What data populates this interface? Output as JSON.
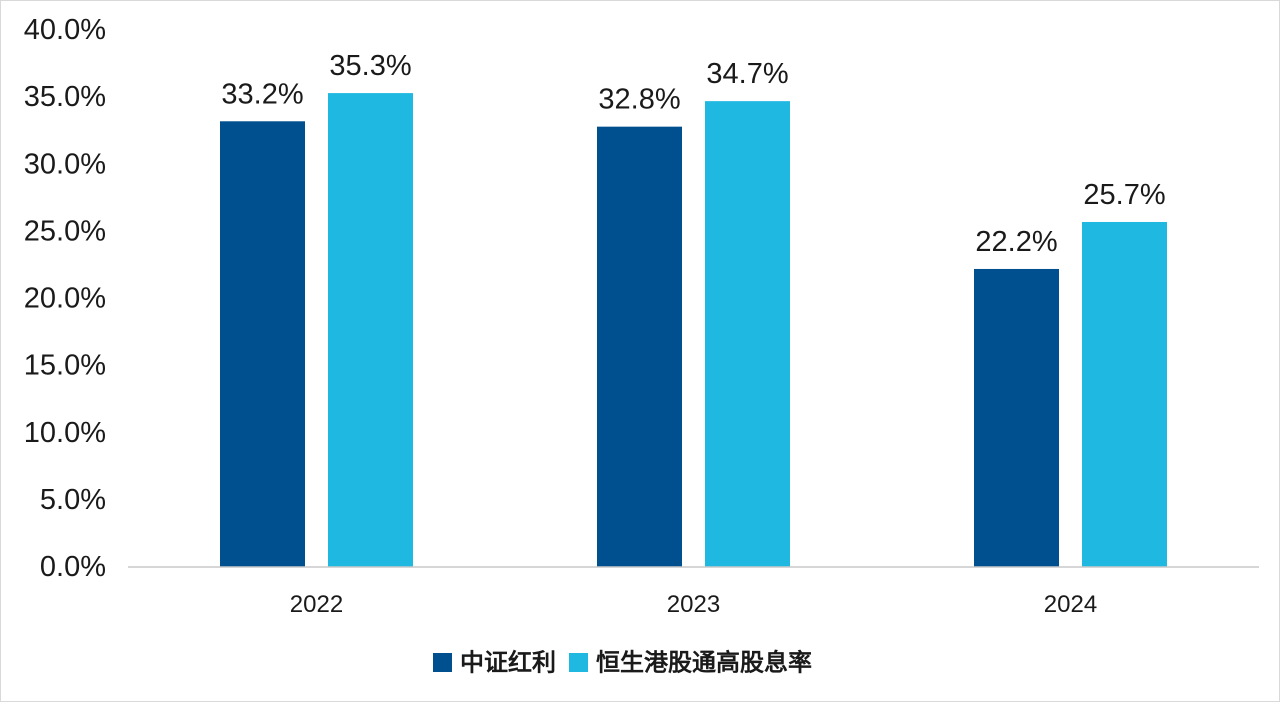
{
  "chart_data": {
    "type": "bar",
    "categories": [
      "2022",
      "2023",
      "2024"
    ],
    "series": [
      {
        "name": "中证红利",
        "values": [
          33.2,
          32.8,
          22.2
        ],
        "labels": [
          "33.2%",
          "32.8%",
          "22.2%"
        ],
        "color": "#00508f"
      },
      {
        "name": "恒生港股通高股息率",
        "values": [
          35.3,
          34.7,
          25.7
        ],
        "labels": [
          "35.3%",
          "34.7%",
          "25.7%"
        ],
        "color": "#1fb8e0"
      }
    ],
    "ylim": [
      0,
      40
    ],
    "yticks": [
      0,
      5,
      10,
      15,
      20,
      25,
      30,
      35,
      40
    ],
    "ytick_labels": [
      "0.0%",
      "5.0%",
      "10.0%",
      "15.0%",
      "20.0%",
      "25.0%",
      "30.0%",
      "35.0%",
      "40.0%"
    ],
    "grid": false,
    "legend_position": "bottom-center"
  }
}
